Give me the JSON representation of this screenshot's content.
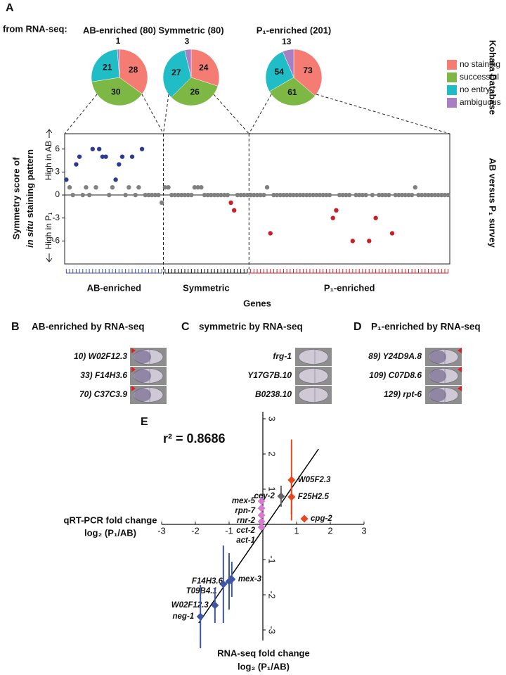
{
  "panel_labels": [
    "A",
    "B",
    "C",
    "D",
    "E"
  ],
  "panel_a": {
    "source_label": "from RNA-seq:",
    "database_label": "Kohara Database",
    "survey_label": "AB versus P₁ survey"
  },
  "pie_legend": {
    "categories": [
      "no staining",
      "successful",
      "no entry",
      "ambiguous"
    ],
    "colors": [
      "#f47c72",
      "#7cb843",
      "#20bdc6",
      "#a97fc4"
    ]
  },
  "chart_data": [
    {
      "type": "pie",
      "title": "AB-enriched (80)",
      "title_color": "#3f51a2",
      "values": [
        28,
        30,
        21,
        1
      ]
    },
    {
      "type": "pie",
      "title": "Symmetric (80)",
      "title_color": "#111111",
      "values": [
        24,
        26,
        27,
        3
      ]
    },
    {
      "type": "pie",
      "title": "P₁-enriched (201)",
      "title_color": "#d2232a",
      "values": [
        73,
        61,
        54,
        13
      ]
    },
    {
      "type": "dot",
      "ylabel": "Symmetry score of",
      "ylabel_italic": "in situ",
      "ylabel_rest": "staining pattern",
      "direction_labels": [
        "High in AB",
        "High in P₁"
      ],
      "xlabel": "Genes",
      "xlim": [
        0.5,
        117.5
      ],
      "ylim": [
        -9,
        8
      ],
      "yticks": [
        -6,
        -3,
        0,
        3,
        6
      ],
      "groups": [
        {
          "label": "AB-enriched",
          "color": "#3f51a2",
          "range": [
            1,
            30
          ]
        },
        {
          "label": "Symmetric",
          "color": "#111111",
          "range": [
            31,
            56
          ]
        },
        {
          "label": "P₁-enriched",
          "color": "#d2232a",
          "range": [
            57,
            117
          ]
        }
      ],
      "series": [
        {
          "color": "#2e3a8f",
          "x": [
            1,
            4,
            5,
            9,
            11,
            12,
            13,
            16,
            17,
            18,
            21,
            24
          ],
          "values": [
            2,
            4,
            5,
            6,
            6,
            5,
            5,
            2,
            4,
            5,
            5,
            6
          ]
        },
        {
          "color": "#c8202a",
          "x": [
            51,
            52,
            63,
            82,
            83,
            88,
            93,
            95,
            100
          ],
          "values": [
            -1,
            -2,
            -5,
            -3,
            -2,
            -6,
            -6,
            -3,
            -5
          ]
        },
        {
          "color": "#808080",
          "x": [
            2,
            3,
            6,
            7,
            8,
            10,
            14,
            15,
            19,
            20,
            22,
            23,
            25,
            26,
            27,
            28,
            29,
            30,
            31,
            32,
            33,
            34,
            35,
            36,
            37,
            38,
            39,
            40,
            41,
            42,
            43,
            44,
            45,
            46,
            47,
            48,
            49,
            50,
            53,
            54,
            55,
            56,
            57,
            58,
            59,
            60,
            61,
            62,
            64,
            65,
            66,
            67,
            68,
            69,
            70,
            71,
            72,
            73,
            74,
            75,
            76,
            77,
            78,
            79,
            80,
            81,
            84,
            85,
            86,
            87,
            89,
            90,
            91,
            92,
            94,
            96,
            97,
            98,
            99,
            101,
            102,
            103,
            104,
            105,
            106,
            107,
            108,
            109,
            110,
            111,
            112,
            113,
            114,
            115,
            116,
            117
          ],
          "values": [
            1,
            0,
            0,
            1,
            0,
            1,
            0,
            1,
            0,
            1,
            0,
            1,
            0,
            0,
            0,
            0,
            0,
            -1,
            1,
            1,
            0,
            0,
            0,
            0,
            0,
            0,
            0,
            1,
            1,
            1,
            0,
            0,
            0,
            0,
            0,
            0,
            0,
            0,
            0,
            0,
            0,
            0,
            0,
            0,
            0,
            0,
            0,
            1,
            0,
            0,
            0,
            0,
            0,
            0,
            0,
            0,
            0,
            0,
            0,
            0,
            0,
            0,
            0,
            0,
            0,
            0,
            0,
            0,
            0,
            0,
            0,
            0,
            0,
            0,
            0,
            0,
            0,
            0,
            0,
            0,
            0,
            0,
            0,
            0,
            0,
            1,
            0,
            0,
            0,
            0,
            0,
            0,
            0,
            0,
            0,
            0
          ]
        }
      ]
    },
    {
      "type": "scatter",
      "annotation": "r² = 0.8686",
      "xlabel": "RNA-seq fold change",
      "xlabel_unit": "log₂ (P₁/AB)",
      "ylabel": "qRT-PCR fold change",
      "ylabel_unit": "log₂ (P₁/AB)",
      "xlim": [
        -3,
        3
      ],
      "ylim": [
        -3.3,
        3.2
      ],
      "xticks": [
        -3,
        -2,
        -1,
        1,
        2,
        3
      ],
      "yticks": [
        -3,
        -2,
        -1,
        1,
        2,
        3
      ],
      "series": [
        {
          "color": "#e8461e",
          "labels": [
            "W05F2.3",
            "F25H2.5",
            "cpg-2"
          ],
          "x": [
            0.85,
            0.85,
            1.23
          ],
          "values": [
            1.26,
            0.78,
            0.16
          ],
          "errors": [
            1.15,
            0.5,
            null
          ]
        },
        {
          "color": "#666666",
          "labels": [
            "cey-2"
          ],
          "x": [
            0.54
          ],
          "values": [
            0.8
          ],
          "errors": [
            0.3
          ]
        },
        {
          "color": "#d57bd0",
          "labels": [
            "mex-5",
            "rpn-7",
            "rnr-2",
            "cct-2",
            "act-1"
          ],
          "x": [
            -0.04,
            -0.04,
            -0.04,
            -0.04,
            -0.04
          ],
          "values": [
            0.66,
            0.46,
            0.26,
            0.08,
            -0.08
          ],
          "errors": [
            null,
            null,
            null,
            null,
            null
          ]
        },
        {
          "color": "#3f56a6",
          "labels": [
            "mex-3",
            "F14H3.6",
            "T09B4.1",
            "W02F12.3",
            "neg-1"
          ],
          "x": [
            -0.92,
            -1.0,
            -1.17,
            -1.42,
            -1.85
          ],
          "values": [
            -1.56,
            -1.62,
            -1.7,
            -2.3,
            -2.62
          ],
          "errors": [
            0.5,
            0.8,
            1.1,
            0.5,
            0.9
          ]
        }
      ],
      "fit": {
        "color": "#000000",
        "x": [
          -1.9,
          1.65
        ],
        "values": [
          -2.8,
          2.14
        ]
      }
    }
  ],
  "panels": [
    {
      "title": "AB-enriched by RNA-seq",
      "color": "#3f51a2",
      "items": [
        "10) W02F12.3",
        "33) F14H3.6",
        "70) C37C3.9"
      ]
    },
    {
      "title": "symmetric by RNA-seq",
      "color": "#111111",
      "items": [
        "frg-1",
        "Y17G7B.10",
        "B0238.10"
      ]
    },
    {
      "title": "P₁-enriched by RNA-seq",
      "color": "#d2232a",
      "items": [
        "89) Y24D9A.8",
        "109) C07D8.6",
        "129) rpt-6"
      ]
    }
  ]
}
